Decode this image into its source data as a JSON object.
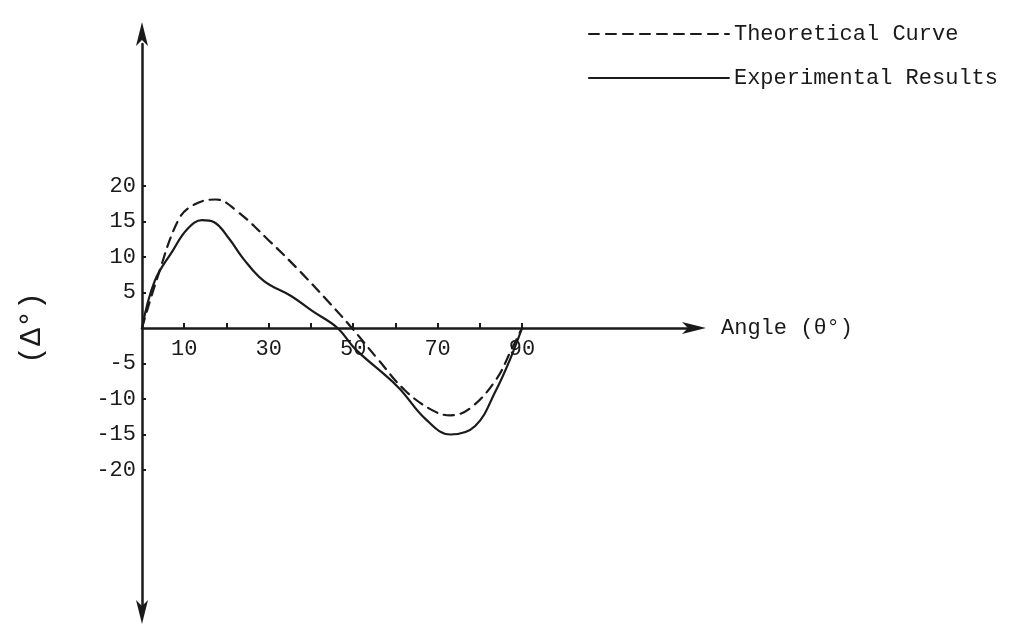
{
  "chart_data": {
    "type": "line",
    "xlabel": "Angle (θ°)",
    "ylabel": "(Δ°)",
    "xlim": [
      0,
      130
    ],
    "ylim": [
      -40,
      40
    ],
    "xticks": [
      10,
      {
        "value": 20,
        "label": null
      },
      30,
      {
        "value": 40,
        "label": null
      },
      50,
      {
        "value": 60,
        "label": null
      },
      70,
      {
        "value": 80,
        "label": null
      },
      90
    ],
    "yticks": [
      -20,
      -15,
      -10,
      -5,
      5,
      10,
      15,
      20
    ],
    "grid": false,
    "legend": "top right",
    "marker": "none",
    "series": [
      {
        "name": "Theoretical Curve",
        "color": "#1a1a1a",
        "line_style": "dashed",
        "x": [
          0,
          3.7,
          8.7,
          12.4,
          17.5,
          22.4,
          30.1,
          37.7,
          44.3,
          49.7,
          56,
          62.3,
          68.8,
          73,
          77.7,
          83.8,
          87.6,
          90
        ],
        "values": [
          0,
          7.2,
          15.3,
          17.4,
          18.1,
          16.5,
          12.3,
          7.8,
          3.6,
          0,
          -4.5,
          -8.8,
          -11.6,
          -12.3,
          -11.3,
          -7.3,
          -2.9,
          0
        ]
      },
      {
        "name": "Experimental Results",
        "color": "#1a1a1a",
        "line_style": "solid",
        "x": [
          0,
          3,
          7.3,
          10.7,
          14.2,
          17.1,
          20.6,
          24.2,
          28.9,
          35.3,
          40.3,
          46.3,
          50.4,
          60.6,
          67.1,
          73,
          78.9,
          83.8,
          87.3,
          90
        ],
        "values": [
          0,
          6.6,
          10.9,
          13.9,
          15.2,
          14.9,
          12.6,
          9.6,
          6.6,
          4.5,
          2.4,
          0,
          -2.9,
          -8.3,
          -12.8,
          -15,
          -13.8,
          -8.8,
          -4.2,
          0
        ]
      }
    ]
  }
}
